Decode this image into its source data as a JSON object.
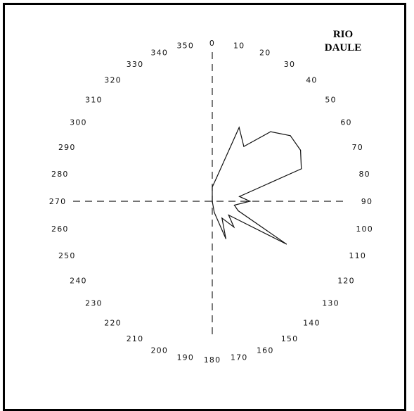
{
  "chart_data": {
    "type": "radar",
    "title_lines": [
      "RIO",
      "DAULE"
    ],
    "angular_labels": [
      "0",
      "10",
      "20",
      "30",
      "40",
      "50",
      "60",
      "70",
      "80",
      "90",
      "100",
      "110",
      "120",
      "130",
      "140",
      "150",
      "160",
      "170",
      "180",
      "190",
      "200",
      "210",
      "220",
      "230",
      "240",
      "250",
      "260",
      "270",
      "280",
      "290",
      "300",
      "310",
      "320",
      "330",
      "340",
      "350"
    ],
    "direction": "clockwise",
    "zero_at": "top",
    "axes": [
      {
        "name": "vertical",
        "from_deg": 0,
        "to_deg": 180,
        "style": "dashed"
      },
      {
        "name": "horizontal",
        "from_deg": 270,
        "to_deg": 90,
        "style": "dashed"
      }
    ],
    "series": [
      {
        "points": [
          {
            "angle": 0,
            "r": 0.14
          },
          {
            "angle": 10,
            "r": 0.23
          },
          {
            "angle": 20,
            "r": 0.77
          },
          {
            "angle": 30,
            "r": 0.62
          },
          {
            "angle": 40,
            "r": 0.89
          },
          {
            "angle": 50,
            "r": 1.0
          },
          {
            "angle": 60,
            "r": 1.0
          },
          {
            "angle": 70,
            "r": 0.93
          },
          {
            "angle": 80,
            "r": 0.27
          },
          {
            "angle": 90,
            "r": 0.37
          },
          {
            "angle": 100,
            "r": 0.22
          },
          {
            "angle": 110,
            "r": 0.27
          },
          {
            "angle": 120,
            "r": 0.84
          },
          {
            "angle": 130,
            "r": 0.21
          },
          {
            "angle": 140,
            "r": 0.33
          },
          {
            "angle": 150,
            "r": 0.19
          },
          {
            "angle": 160,
            "r": 0.39
          },
          {
            "angle": 170,
            "r": 0.11
          },
          {
            "angle": 180,
            "r": 0.0
          },
          {
            "angle": 190,
            "r": 0.0
          },
          {
            "angle": 200,
            "r": 0.0
          },
          {
            "angle": 210,
            "r": 0.0
          },
          {
            "angle": 220,
            "r": 0.0
          },
          {
            "angle": 230,
            "r": 0.0
          },
          {
            "angle": 240,
            "r": 0.0
          },
          {
            "angle": 250,
            "r": 0.0
          },
          {
            "angle": 260,
            "r": 0.0
          },
          {
            "angle": 270,
            "r": 0.0
          },
          {
            "angle": 280,
            "r": 0.0
          },
          {
            "angle": 290,
            "r": 0.0
          },
          {
            "angle": 300,
            "r": 0.0
          },
          {
            "angle": 310,
            "r": 0.0
          },
          {
            "angle": 320,
            "r": 0.0
          },
          {
            "angle": 330,
            "r": 0.0
          },
          {
            "angle": 340,
            "r": 0.0
          },
          {
            "angle": 350,
            "r": 0.0
          }
        ]
      }
    ],
    "line_color": "#111111",
    "axis_color": "#222222"
  }
}
